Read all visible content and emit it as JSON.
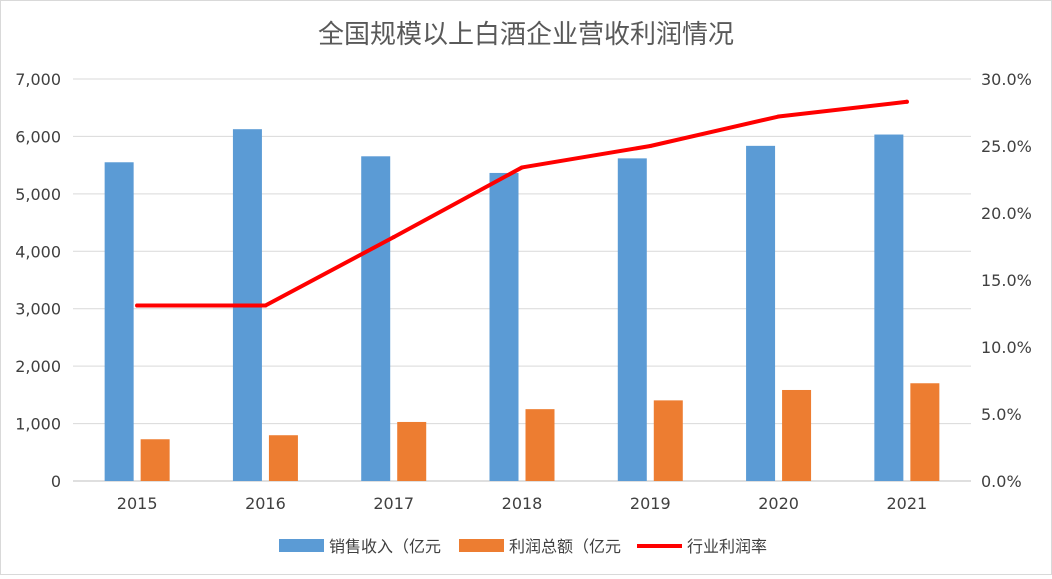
{
  "chart_data": {
    "type": "bar",
    "title": "全国规模以上白酒企业营收利润情况",
    "categories": [
      "2015",
      "2016",
      "2017",
      "2018",
      "2019",
      "2020",
      "2021"
    ],
    "series": [
      {
        "name": "销售收入（亿元",
        "kind": "bar",
        "axis": "left",
        "color": "#5b9bd5",
        "values": [
          5550,
          6126,
          5654,
          5364,
          5618,
          5836,
          6033
        ]
      },
      {
        "name": "利润总额（亿元",
        "kind": "bar",
        "axis": "left",
        "color": "#ed7d31",
        "values": [
          727,
          797,
          1028,
          1251,
          1404,
          1585,
          1702
        ]
      },
      {
        "name": "行业利润率",
        "kind": "line",
        "axis": "right",
        "color": "#ff0000",
        "values": [
          13.1,
          13.1,
          18.2,
          23.4,
          25.0,
          27.2,
          28.3
        ]
      }
    ],
    "y_left": {
      "min": 0,
      "max": 7000,
      "step": 1000,
      "tick_labels": [
        "0",
        "1,000",
        "2,000",
        "3,000",
        "4,000",
        "5,000",
        "6,000",
        "7,000"
      ]
    },
    "y_right": {
      "min": 0,
      "max": 30,
      "step": 5,
      "tick_labels": [
        "0.0%",
        "5.0%",
        "10.0%",
        "15.0%",
        "20.0%",
        "25.0%",
        "30.0%"
      ]
    },
    "grid": true,
    "legend_position": "bottom"
  }
}
